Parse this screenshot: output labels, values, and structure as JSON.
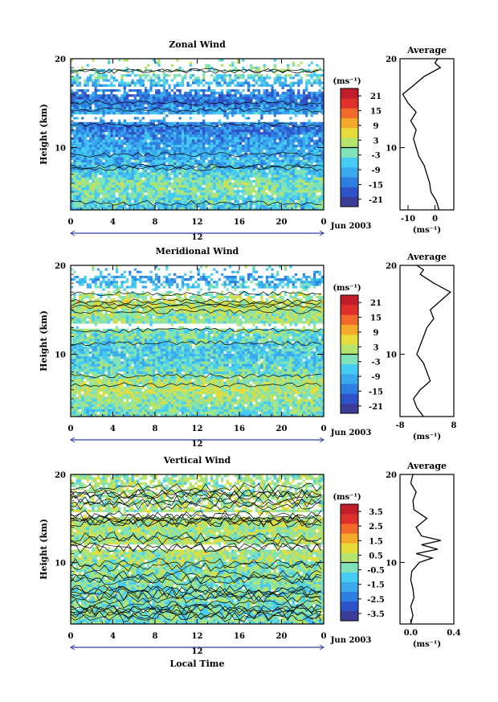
{
  "chart_data": [
    {
      "type": "heatmap",
      "title": "Zonal Wind",
      "xlabel": "",
      "ylabel": "Height (km)",
      "x_ticks": [
        "0",
        "4",
        "8",
        "12",
        "16",
        "20",
        "0"
      ],
      "y_ticks": [
        "10",
        "20"
      ],
      "xlim": [
        0,
        24
      ],
      "ylim": [
        3,
        20
      ],
      "colorbar_unit": "(ms⁻¹)",
      "colorbar_ticks": [
        "21",
        "15",
        "9",
        "3",
        "-3",
        "-9",
        "-15",
        "-21"
      ],
      "colorbar_range": [
        -24,
        24
      ],
      "date_marker": "12",
      "date_label": "Jun 2003",
      "field_profile": [
        {
          "h": 3,
          "v": -6
        },
        {
          "h": 4,
          "v": -4
        },
        {
          "h": 5,
          "v": -2
        },
        {
          "h": 6,
          "v": -1
        },
        {
          "h": 7,
          "v": -5
        },
        {
          "h": 8,
          "v": -8
        },
        {
          "h": 9,
          "v": -9
        },
        {
          "h": 10,
          "v": -10
        },
        {
          "h": 11,
          "v": -11
        },
        {
          "h": 12,
          "v": -14
        },
        {
          "h": 13,
          "v": -12
        },
        {
          "h": 14,
          "v": -9
        },
        {
          "h": 15,
          "v": -14
        },
        {
          "h": 16,
          "v": -15
        },
        {
          "h": 17,
          "v": -10
        },
        {
          "h": 18,
          "v": -4
        },
        {
          "h": 19,
          "v": -2
        },
        {
          "h": 20,
          "v": -1
        }
      ],
      "gaps": [
        [
          12.8,
          13.8
        ],
        [
          16.6,
          17.0
        ],
        [
          18.2,
          18.6
        ],
        [
          19.0,
          20.0
        ]
      ],
      "average": {
        "title": "Average",
        "unit": "(ms⁻¹)",
        "x_ticks": [
          "-10",
          "0"
        ],
        "y_ticks": [
          "10",
          "20"
        ],
        "xlim": [
          -13,
          7
        ],
        "ylim": [
          3,
          20
        ],
        "profile": [
          {
            "h": 3,
            "v": 1.5
          },
          {
            "h": 4,
            "v": 0.5
          },
          {
            "h": 5,
            "v": -1.5
          },
          {
            "h": 6,
            "v": -2
          },
          {
            "h": 7,
            "v": -3
          },
          {
            "h": 8,
            "v": -4
          },
          {
            "h": 9,
            "v": -6
          },
          {
            "h": 10,
            "v": -7
          },
          {
            "h": 11,
            "v": -8
          },
          {
            "h": 12,
            "v": -7
          },
          {
            "h": 13,
            "v": -9
          },
          {
            "h": 14,
            "v": -7
          },
          {
            "h": 15,
            "v": -10
          },
          {
            "h": 16,
            "v": -12
          },
          {
            "h": 17,
            "v": -8
          },
          {
            "h": 18,
            "v": -4
          },
          {
            "h": 19,
            "v": 2
          },
          {
            "h": 19.5,
            "v": 0
          },
          {
            "h": 20,
            "v": 1
          }
        ]
      }
    },
    {
      "type": "heatmap",
      "title": "Meridional Wind",
      "xlabel": "",
      "ylabel": "Height (km)",
      "x_ticks": [
        "0",
        "4",
        "8",
        "12",
        "16",
        "20",
        "0"
      ],
      "y_ticks": [
        "10",
        "20"
      ],
      "xlim": [
        0,
        24
      ],
      "ylim": [
        3,
        20
      ],
      "colorbar_unit": "(ms⁻¹)",
      "colorbar_ticks": [
        "21",
        "15",
        "9",
        "3",
        "-3",
        "-9",
        "-15",
        "-21"
      ],
      "colorbar_range": [
        -24,
        24
      ],
      "date_marker": "12",
      "date_label": "Jun 2003",
      "field_profile": [
        {
          "h": 3,
          "v": -4
        },
        {
          "h": 4,
          "v": -2
        },
        {
          "h": 5,
          "v": 0
        },
        {
          "h": 6,
          "v": 2
        },
        {
          "h": 7,
          "v": 1
        },
        {
          "h": 8,
          "v": -3
        },
        {
          "h": 9,
          "v": -5
        },
        {
          "h": 10,
          "v": -6
        },
        {
          "h": 11,
          "v": -5
        },
        {
          "h": 12,
          "v": -3
        },
        {
          "h": 13,
          "v": -1
        },
        {
          "h": 14,
          "v": 0
        },
        {
          "h": 15,
          "v": 1
        },
        {
          "h": 16,
          "v": 3
        },
        {
          "h": 17,
          "v": -2
        },
        {
          "h": 18,
          "v": -9
        },
        {
          "h": 19,
          "v": -10
        },
        {
          "h": 20,
          "v": -3
        }
      ],
      "gaps": [
        [
          13.0,
          13.6
        ],
        [
          17.0,
          17.4
        ],
        [
          18.8,
          20.0
        ]
      ],
      "average": {
        "title": "Average",
        "unit": "(ms⁻¹)",
        "x_ticks": [
          "-8",
          "8"
        ],
        "y_ticks": [
          "10",
          "20"
        ],
        "xlim": [
          -8,
          8
        ],
        "ylim": [
          3,
          20
        ],
        "profile": [
          {
            "h": 3,
            "v": -1
          },
          {
            "h": 4,
            "v": -3
          },
          {
            "h": 5,
            "v": -4
          },
          {
            "h": 6,
            "v": -2
          },
          {
            "h": 7,
            "v": 1
          },
          {
            "h": 8,
            "v": 0
          },
          {
            "h": 9,
            "v": -1
          },
          {
            "h": 10,
            "v": -3
          },
          {
            "h": 11,
            "v": -2
          },
          {
            "h": 12,
            "v": -1
          },
          {
            "h": 13,
            "v": 0
          },
          {
            "h": 14,
            "v": 2
          },
          {
            "h": 15,
            "v": 1
          },
          {
            "h": 16,
            "v": 4
          },
          {
            "h": 17,
            "v": 7
          },
          {
            "h": 18,
            "v": 2
          },
          {
            "h": 19,
            "v": -2
          },
          {
            "h": 19.5,
            "v": -1
          },
          {
            "h": 20,
            "v": -3
          }
        ]
      }
    },
    {
      "type": "heatmap",
      "title": "Vertical Wind",
      "xlabel": "Local Time",
      "ylabel": "Height (km)",
      "x_ticks": [
        "0",
        "4",
        "8",
        "12",
        "16",
        "20",
        "0"
      ],
      "y_ticks": [
        "10",
        "20"
      ],
      "xlim": [
        0,
        24
      ],
      "ylim": [
        3,
        20
      ],
      "colorbar_unit": "(ms⁻¹)",
      "colorbar_ticks": [
        "3.5",
        "2.5",
        "1.5",
        "0.5",
        "-0.5",
        "-1.5",
        "-2.5",
        "-3.5"
      ],
      "colorbar_range": [
        -4,
        4
      ],
      "date_marker": "12",
      "date_label": "Jun 2003",
      "field_profile": [
        {
          "h": 3,
          "v": -0.5
        },
        {
          "h": 4,
          "v": -0.3
        },
        {
          "h": 5,
          "v": -0.4
        },
        {
          "h": 6,
          "v": -0.2
        },
        {
          "h": 7,
          "v": -0.4
        },
        {
          "h": 8,
          "v": -0.3
        },
        {
          "h": 9,
          "v": -0.2
        },
        {
          "h": 10,
          "v": -0.1
        },
        {
          "h": 11,
          "v": 0.2
        },
        {
          "h": 12,
          "v": 0.3
        },
        {
          "h": 13,
          "v": 0.1
        },
        {
          "h": 14,
          "v": 0.2
        },
        {
          "h": 15,
          "v": 0.4
        },
        {
          "h": 16,
          "v": 0.2
        },
        {
          "h": 17,
          "v": 0.1
        },
        {
          "h": 18,
          "v": 0.2
        },
        {
          "h": 19,
          "v": 0.1
        },
        {
          "h": 20,
          "v": 0.0
        }
      ],
      "gaps": [
        [
          11.6,
          12.1
        ],
        [
          15.3,
          15.8
        ]
      ],
      "average": {
        "title": "Average",
        "unit": "(ms⁻¹)",
        "x_ticks": [
          "0.0",
          "0.4"
        ],
        "y_ticks": [
          "10",
          "20"
        ],
        "xlim": [
          -0.1,
          0.4
        ],
        "ylim": [
          3,
          20
        ],
        "profile": [
          {
            "h": 3,
            "v": 0.0
          },
          {
            "h": 4,
            "v": 0.02
          },
          {
            "h": 5,
            "v": 0.0
          },
          {
            "h": 6,
            "v": 0.03
          },
          {
            "h": 7,
            "v": 0.02
          },
          {
            "h": 8,
            "v": 0.0
          },
          {
            "h": 9,
            "v": 0.01
          },
          {
            "h": 10,
            "v": 0.08
          },
          {
            "h": 10.5,
            "v": 0.2
          },
          {
            "h": 11,
            "v": 0.05
          },
          {
            "h": 11.5,
            "v": 0.25
          },
          {
            "h": 12,
            "v": 0.1
          },
          {
            "h": 12.5,
            "v": 0.28
          },
          {
            "h": 13,
            "v": 0.1
          },
          {
            "h": 14,
            "v": 0.05
          },
          {
            "h": 15,
            "v": 0.15
          },
          {
            "h": 16,
            "v": 0.03
          },
          {
            "h": 17,
            "v": 0.02
          },
          {
            "h": 18,
            "v": 0.05
          },
          {
            "h": 19,
            "v": 0.0
          },
          {
            "h": 20,
            "v": 0.02
          }
        ]
      }
    }
  ],
  "colors": {
    "scale": [
      "#3b3b98",
      "#2f53c8",
      "#2f7fe0",
      "#3aa9ee",
      "#46cbf2",
      "#7fe2b8",
      "#b4e46e",
      "#e6dc3a",
      "#f5a92a",
      "#f26a2a",
      "#e0302a",
      "#c01e2a"
    ],
    "zero_line": "#000000",
    "missing": "#ffffff"
  }
}
